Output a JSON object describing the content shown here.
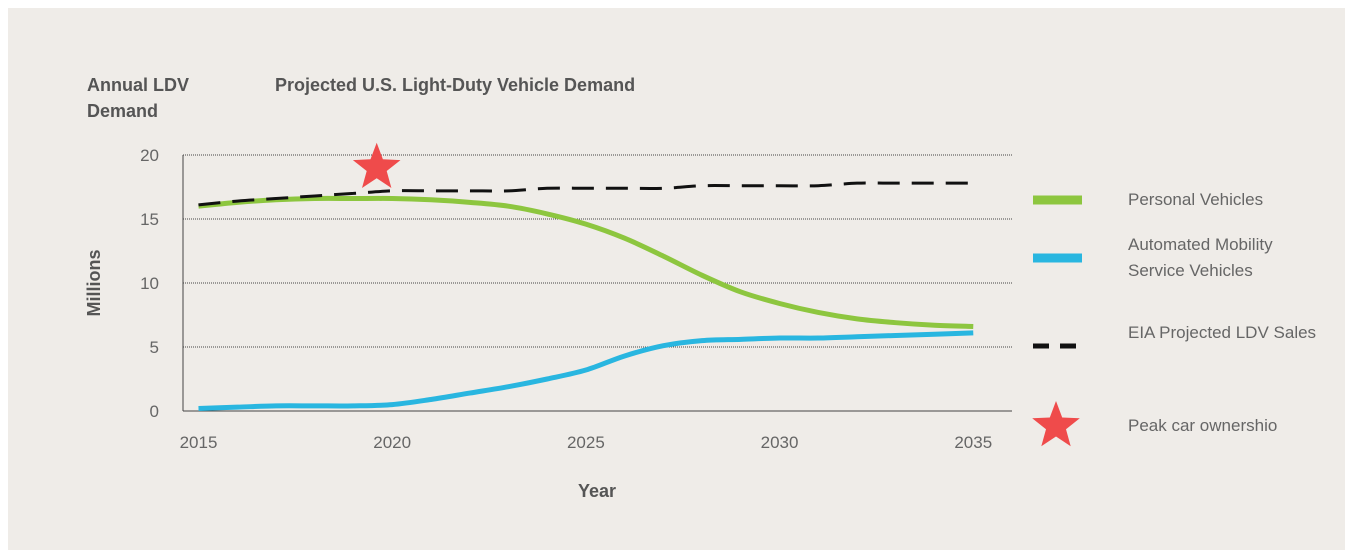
{
  "chart_data": {
    "type": "line",
    "title": "Projected U.S. Light-Duty Vehicle Demand",
    "y_axis_title": "Annual LDV Demand",
    "y_label": "Millions",
    "x_label": "Year",
    "x": [
      2015,
      2016,
      2017,
      2018,
      2019,
      2020,
      2021,
      2022,
      2023,
      2024,
      2025,
      2026,
      2027,
      2028,
      2029,
      2030,
      2031,
      2032,
      2033,
      2034,
      2035
    ],
    "series": [
      {
        "name": "Personal Vehicles",
        "color": "#8dc63f",
        "style": "solid",
        "values": [
          16.0,
          16.3,
          16.5,
          16.6,
          16.6,
          16.6,
          16.5,
          16.3,
          16.0,
          15.4,
          14.6,
          13.5,
          12.1,
          10.6,
          9.3,
          8.4,
          7.7,
          7.2,
          6.9,
          6.7,
          6.6
        ]
      },
      {
        "name": "Automated Mobility Service Vehicles",
        "color": "#29b6e0",
        "style": "solid",
        "values": [
          0.2,
          0.3,
          0.4,
          0.4,
          0.4,
          0.5,
          0.9,
          1.4,
          1.9,
          2.5,
          3.2,
          4.3,
          5.1,
          5.5,
          5.6,
          5.7,
          5.7,
          5.8,
          5.9,
          6.0,
          6.1
        ]
      },
      {
        "name": "EIA Projected LDV Sales",
        "color": "#111111",
        "style": "dashed",
        "values": [
          16.1,
          16.4,
          16.6,
          16.8,
          17.0,
          17.2,
          17.2,
          17.2,
          17.2,
          17.4,
          17.4,
          17.4,
          17.4,
          17.6,
          17.6,
          17.6,
          17.6,
          17.8,
          17.8,
          17.8,
          17.8
        ]
      }
    ],
    "marker": {
      "name": "Peak car ownershio",
      "color": "#ef4b4b",
      "x": 2019.6,
      "y": 19
    },
    "xlim": [
      2014.6,
      2036
    ],
    "xticks": [
      2015,
      2020,
      2025,
      2030,
      2035
    ],
    "ylim": [
      0,
      20
    ],
    "yticks": [
      0,
      5,
      10,
      15,
      20
    ],
    "grid": true,
    "legend": "right"
  }
}
